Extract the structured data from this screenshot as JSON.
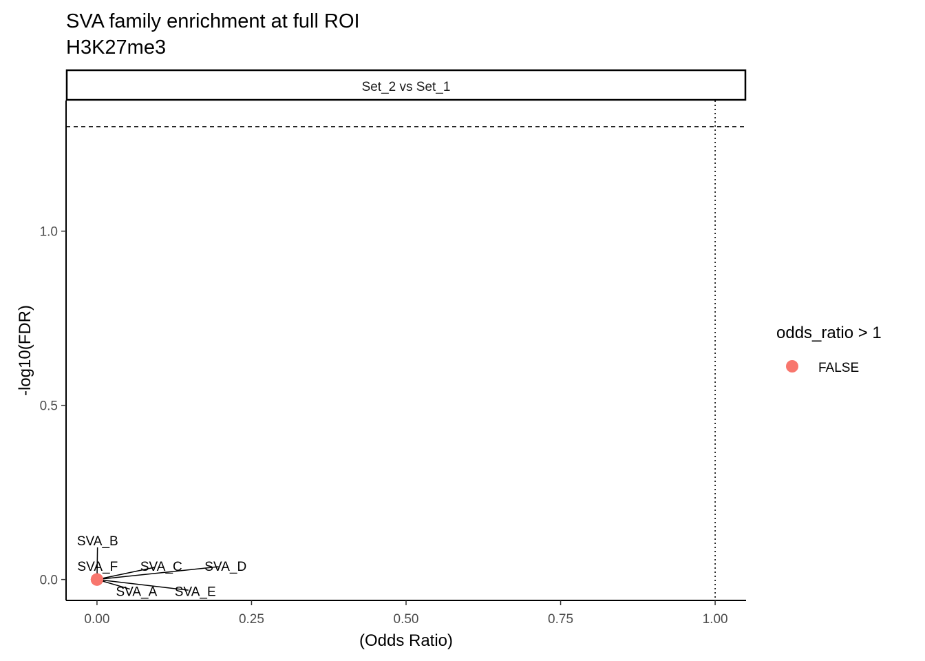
{
  "chart_data": {
    "type": "scatter",
    "title": "SVA family enrichment at full ROI",
    "subtitle": "H3K27me3",
    "facet_label": "Set_2 vs Set_1",
    "xlabel": "(Odds Ratio)",
    "ylabel": "-log10(FDR)",
    "xlim": [
      -0.05,
      1.05
    ],
    "ylim": [
      -0.06,
      1.375
    ],
    "x_ticks": [
      0,
      0.25,
      0.5,
      0.75,
      1
    ],
    "x_tick_labels": [
      "0.00",
      "0.25",
      "0.50",
      "0.75",
      "1.00"
    ],
    "y_ticks": [
      0,
      0.5,
      1
    ],
    "y_tick_labels": [
      "0.0",
      "0.5",
      "1.0"
    ],
    "grid": false,
    "reference_lines": {
      "horizontal_y": 1.3,
      "vertical_x": 1.0
    },
    "points": [
      {
        "label": "SVA_A",
        "x": 0,
        "y": 0,
        "group": "FALSE",
        "label_x": 0.064,
        "label_y": -0.033
      },
      {
        "label": "SVA_B",
        "x": 0,
        "y": 0,
        "group": "FALSE",
        "label_x": 0.001,
        "label_y": 0.112
      },
      {
        "label": "SVA_C",
        "x": 0,
        "y": 0,
        "group": "FALSE",
        "label_x": 0.104,
        "label_y": 0.039
      },
      {
        "label": "SVA_D",
        "x": 0,
        "y": 0,
        "group": "FALSE",
        "label_x": 0.208,
        "label_y": 0.039
      },
      {
        "label": "SVA_E",
        "x": 0,
        "y": 0,
        "group": "FALSE",
        "label_x": 0.159,
        "label_y": -0.033
      },
      {
        "label": "SVA_F",
        "x": 0,
        "y": 0,
        "group": "FALSE",
        "label_x": 0.001,
        "label_y": 0.039
      }
    ],
    "legend": {
      "title": "odds_ratio > 1",
      "position": "right",
      "entries": [
        {
          "label": "FALSE",
          "color": "#F8766D"
        }
      ]
    },
    "colors": {
      "FALSE": "#F8766D"
    }
  }
}
